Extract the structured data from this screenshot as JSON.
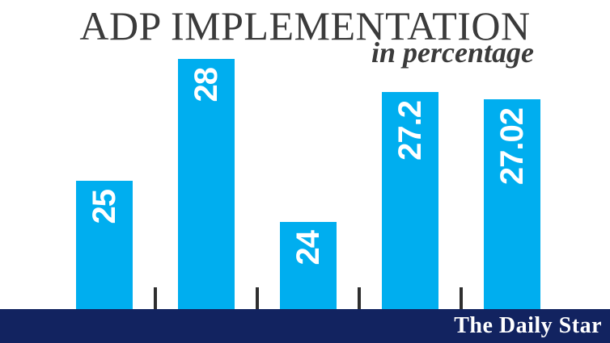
{
  "colors": {
    "bar": "#00aeef",
    "band": "#122360",
    "text": "#3b3b3b",
    "label": "#ffffff",
    "tick": "#2f2f2f"
  },
  "branding": {
    "logo_text": "The Daily Star"
  },
  "chart_data": {
    "type": "bar",
    "title": "ADP IMPLEMENTATION",
    "subtitle": "in percentage",
    "values": [
      25,
      28,
      24,
      27.2,
      27.02
    ],
    "labels": [
      "25",
      "28",
      "24",
      "27.2",
      "27.02"
    ],
    "categories": [
      "",
      "",
      "",
      "",
      ""
    ],
    "xlabel": "",
    "ylabel": "",
    "ylim": [
      21.85,
      28.6
    ],
    "grid": false,
    "legend": false,
    "value_labels_position": "inside-top-rotated",
    "bar_color": "#00aeef",
    "baseline_color": "#122360"
  }
}
